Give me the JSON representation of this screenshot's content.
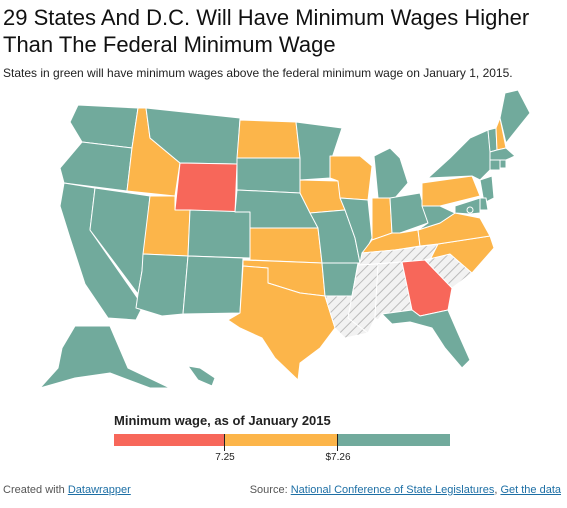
{
  "header": {
    "title": "29 States And D.C. Will Have Minimum Wages Higher Than The Federal Minimum Wage",
    "subtitle": "States in green will have minimum wages above the federal minimum wage on January 1, 2015."
  },
  "colors": {
    "below": "#f7675a",
    "equal": "#fcb54a",
    "above": "#71aa9c",
    "none": "#f2f2f2",
    "hatch": "#bbbbbb",
    "border": "#ffffff"
  },
  "map": {
    "states": [
      {
        "id": "WA",
        "cat": "above"
      },
      {
        "id": "OR",
        "cat": "above"
      },
      {
        "id": "CA",
        "cat": "above"
      },
      {
        "id": "NV",
        "cat": "above"
      },
      {
        "id": "ID",
        "cat": "equal"
      },
      {
        "id": "MT",
        "cat": "above"
      },
      {
        "id": "WY",
        "cat": "below"
      },
      {
        "id": "UT",
        "cat": "equal"
      },
      {
        "id": "AZ",
        "cat": "above"
      },
      {
        "id": "CO",
        "cat": "above"
      },
      {
        "id": "NM",
        "cat": "above"
      },
      {
        "id": "ND",
        "cat": "equal"
      },
      {
        "id": "SD",
        "cat": "above"
      },
      {
        "id": "NE",
        "cat": "above"
      },
      {
        "id": "KS",
        "cat": "equal"
      },
      {
        "id": "OK",
        "cat": "equal"
      },
      {
        "id": "TX",
        "cat": "equal"
      },
      {
        "id": "MN",
        "cat": "above"
      },
      {
        "id": "IA",
        "cat": "equal"
      },
      {
        "id": "MO",
        "cat": "above"
      },
      {
        "id": "AR",
        "cat": "above"
      },
      {
        "id": "LA",
        "cat": "none"
      },
      {
        "id": "WI",
        "cat": "equal"
      },
      {
        "id": "IL",
        "cat": "above"
      },
      {
        "id": "MI",
        "cat": "above"
      },
      {
        "id": "IN",
        "cat": "equal"
      },
      {
        "id": "OH",
        "cat": "above"
      },
      {
        "id": "KY",
        "cat": "equal"
      },
      {
        "id": "TN",
        "cat": "none"
      },
      {
        "id": "MS",
        "cat": "none"
      },
      {
        "id": "AL",
        "cat": "none"
      },
      {
        "id": "GA",
        "cat": "below"
      },
      {
        "id": "FL",
        "cat": "above"
      },
      {
        "id": "SC",
        "cat": "none"
      },
      {
        "id": "NC",
        "cat": "equal"
      },
      {
        "id": "VA",
        "cat": "equal"
      },
      {
        "id": "WV",
        "cat": "above"
      },
      {
        "id": "PA",
        "cat": "equal"
      },
      {
        "id": "NY",
        "cat": "above"
      },
      {
        "id": "VT",
        "cat": "above"
      },
      {
        "id": "NH",
        "cat": "equal"
      },
      {
        "id": "ME",
        "cat": "above"
      },
      {
        "id": "MA",
        "cat": "above"
      },
      {
        "id": "RI",
        "cat": "above"
      },
      {
        "id": "CT",
        "cat": "above"
      },
      {
        "id": "NJ",
        "cat": "above"
      },
      {
        "id": "DE",
        "cat": "above"
      },
      {
        "id": "MD",
        "cat": "above"
      },
      {
        "id": "DC",
        "cat": "above"
      },
      {
        "id": "AK",
        "cat": "above"
      },
      {
        "id": "HI",
        "cat": "above"
      }
    ]
  },
  "legend": {
    "title": "Minimum wage, as of January 2015",
    "tick_1": "7.25",
    "tick_2": "$7.26"
  },
  "footer": {
    "created_with": "Created with",
    "datawrapper": "Datawrapper",
    "source_label": "Source:",
    "source_link": "National Conference of State Legislatures",
    "separator": ",",
    "get_data": "Get the data"
  }
}
